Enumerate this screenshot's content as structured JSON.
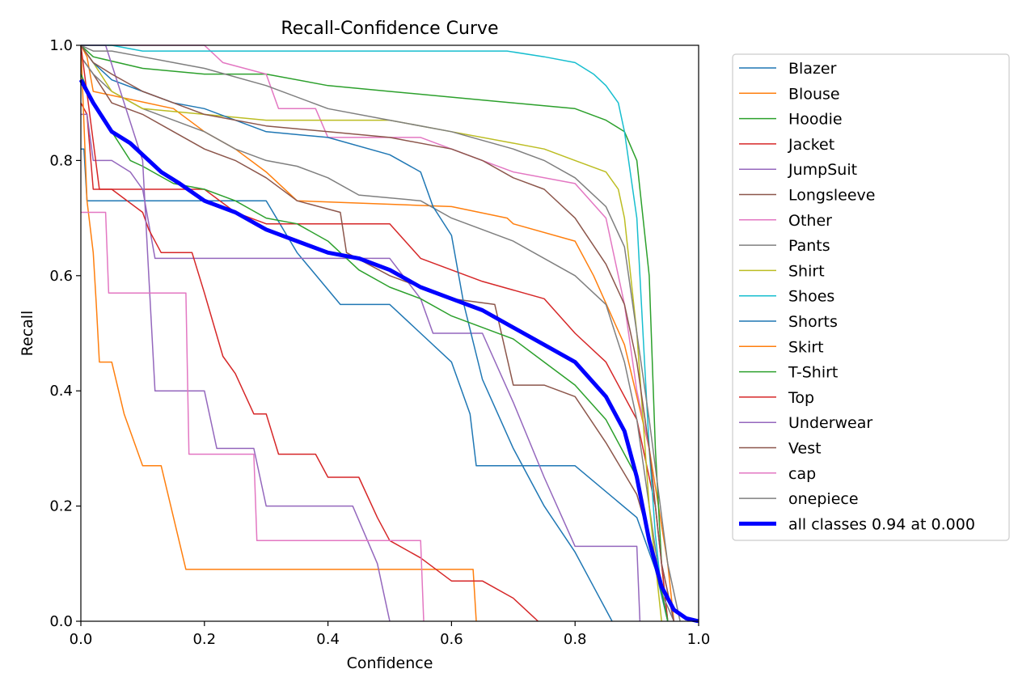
{
  "chart_data": {
    "type": "line",
    "title": "Recall-Confidence Curve",
    "xlabel": "Confidence",
    "ylabel": "Recall",
    "xlim": [
      0,
      1
    ],
    "ylim": [
      0,
      1
    ],
    "xticks": [
      "0.0",
      "0.2",
      "0.4",
      "0.6",
      "0.8",
      "1.0"
    ],
    "yticks": [
      "0.0",
      "0.2",
      "0.4",
      "0.6",
      "0.8",
      "1.0"
    ],
    "grid": false,
    "legend_position": "outside-right",
    "series": [
      {
        "name": "Blazer",
        "color": "#1f77b4",
        "x": [
          0,
          0.005,
          0.01,
          0.2,
          0.3,
          0.35,
          0.42,
          0.5,
          0.55,
          0.6,
          0.63,
          0.64,
          0.8,
          0.9,
          0.93,
          0.95
        ],
        "y": [
          0.82,
          0.82,
          0.73,
          0.73,
          0.73,
          0.64,
          0.55,
          0.55,
          0.5,
          0.45,
          0.36,
          0.27,
          0.27,
          0.18,
          0.09,
          0
        ]
      },
      {
        "name": "Blouse",
        "color": "#ff7f0e",
        "x": [
          0,
          0.01,
          0.02,
          0.15,
          0.2,
          0.25,
          0.3,
          0.35,
          0.6,
          0.69,
          0.7,
          0.8,
          0.83,
          0.88,
          0.92,
          0.95,
          0.96
        ],
        "y": [
          1,
          0.98,
          0.92,
          0.89,
          0.85,
          0.82,
          0.78,
          0.73,
          0.72,
          0.7,
          0.69,
          0.66,
          0.6,
          0.48,
          0.3,
          0.1,
          0
        ]
      },
      {
        "name": "Hoodie",
        "color": "#2ca02c",
        "x": [
          0,
          0.02,
          0.1,
          0.2,
          0.3,
          0.4,
          0.5,
          0.6,
          0.7,
          0.8,
          0.85,
          0.88,
          0.9,
          0.92,
          0.93,
          0.94,
          0.95
        ],
        "y": [
          1,
          0.98,
          0.96,
          0.95,
          0.95,
          0.93,
          0.92,
          0.91,
          0.9,
          0.89,
          0.87,
          0.85,
          0.8,
          0.6,
          0.3,
          0.1,
          0
        ]
      },
      {
        "name": "Jacket",
        "color": "#d62728",
        "x": [
          0,
          0.01,
          0.02,
          0.1,
          0.15,
          0.2,
          0.25,
          0.3,
          0.33,
          0.5,
          0.55,
          0.6,
          0.65,
          0.75,
          0.8,
          0.85,
          0.9,
          0.93,
          0.95
        ],
        "y": [
          0.9,
          0.88,
          0.75,
          0.75,
          0.75,
          0.75,
          0.71,
          0.69,
          0.69,
          0.69,
          0.63,
          0.61,
          0.59,
          0.56,
          0.5,
          0.45,
          0.35,
          0.2,
          0
        ]
      },
      {
        "name": "JumpSuit",
        "color": "#9467bd",
        "x": [
          0,
          0.01,
          0.02,
          0.05,
          0.08,
          0.1,
          0.12,
          0.13,
          0.3,
          0.5,
          0.55,
          0.57,
          0.65,
          0.7,
          0.75,
          0.8,
          0.9,
          0.905
        ],
        "y": [
          0.88,
          0.88,
          0.8,
          0.8,
          0.78,
          0.75,
          0.63,
          0.63,
          0.63,
          0.63,
          0.56,
          0.5,
          0.5,
          0.38,
          0.25,
          0.13,
          0.13,
          0
        ]
      },
      {
        "name": "Longsleeve",
        "color": "#8c564b",
        "x": [
          0,
          0.02,
          0.05,
          0.1,
          0.15,
          0.2,
          0.25,
          0.3,
          0.35,
          0.42,
          0.43,
          0.5,
          0.55,
          0.6,
          0.67,
          0.7,
          0.75,
          0.8,
          0.85,
          0.9,
          0.93,
          0.95
        ],
        "y": [
          0.98,
          0.95,
          0.9,
          0.88,
          0.85,
          0.82,
          0.8,
          0.77,
          0.73,
          0.71,
          0.64,
          0.6,
          0.58,
          0.56,
          0.55,
          0.41,
          0.41,
          0.39,
          0.31,
          0.22,
          0.11,
          0
        ]
      },
      {
        "name": "Other",
        "color": "#e377c2",
        "x": [
          0,
          0.1,
          0.2,
          0.23,
          0.3,
          0.32,
          0.38,
          0.4,
          0.55,
          0.65,
          0.7,
          0.8,
          0.85,
          0.88,
          0.9,
          0.92,
          0.94,
          0.96
        ],
        "y": [
          1,
          1,
          1,
          0.97,
          0.95,
          0.89,
          0.89,
          0.84,
          0.84,
          0.8,
          0.78,
          0.76,
          0.7,
          0.55,
          0.4,
          0.3,
          0.1,
          0
        ]
      },
      {
        "name": "Pants",
        "color": "#7f7f7f",
        "x": [
          0,
          0.02,
          0.05,
          0.1,
          0.2,
          0.25,
          0.3,
          0.35,
          0.4,
          0.45,
          0.55,
          0.6,
          0.7,
          0.8,
          0.85,
          0.88,
          0.9,
          0.92,
          0.94,
          0.96
        ],
        "y": [
          0.98,
          0.95,
          0.92,
          0.89,
          0.85,
          0.82,
          0.8,
          0.79,
          0.77,
          0.74,
          0.73,
          0.7,
          0.66,
          0.6,
          0.55,
          0.45,
          0.35,
          0.2,
          0.05,
          0
        ]
      },
      {
        "name": "Shirt",
        "color": "#bcbd22",
        "x": [
          0,
          0.02,
          0.05,
          0.1,
          0.2,
          0.3,
          0.4,
          0.5,
          0.6,
          0.7,
          0.75,
          0.8,
          0.85,
          0.87,
          0.88,
          0.9,
          0.92,
          0.94
        ],
        "y": [
          1,
          0.97,
          0.92,
          0.89,
          0.88,
          0.87,
          0.87,
          0.87,
          0.85,
          0.83,
          0.82,
          0.8,
          0.78,
          0.75,
          0.7,
          0.5,
          0.2,
          0
        ]
      },
      {
        "name": "Shoes",
        "color": "#17becf",
        "x": [
          0,
          0.05,
          0.1,
          0.3,
          0.5,
          0.6,
          0.69,
          0.75,
          0.8,
          0.83,
          0.85,
          0.87,
          0.88,
          0.9,
          0.91,
          0.92,
          0.93,
          0.94,
          0.95
        ],
        "y": [
          1,
          1,
          0.99,
          0.99,
          0.99,
          0.99,
          0.99,
          0.98,
          0.97,
          0.95,
          0.93,
          0.9,
          0.85,
          0.7,
          0.5,
          0.3,
          0.15,
          0.05,
          0
        ]
      },
      {
        "name": "Shorts",
        "color": "#1f77b4",
        "x": [
          0,
          0.02,
          0.05,
          0.1,
          0.15,
          0.2,
          0.25,
          0.3,
          0.4,
          0.5,
          0.55,
          0.57,
          0.6,
          0.62,
          0.65,
          0.7,
          0.75,
          0.8,
          0.83,
          0.86
        ],
        "y": [
          1,
          0.97,
          0.94,
          0.92,
          0.9,
          0.89,
          0.87,
          0.85,
          0.84,
          0.81,
          0.78,
          0.72,
          0.67,
          0.55,
          0.42,
          0.3,
          0.2,
          0.12,
          0.06,
          0
        ]
      },
      {
        "name": "Skirt",
        "color": "#ff7f0e",
        "x": [
          0,
          0.01,
          0.02,
          0.025,
          0.03,
          0.05,
          0.07,
          0.1,
          0.13,
          0.15,
          0.17,
          0.6,
          0.635,
          0.64
        ],
        "y": [
          1,
          0.73,
          0.64,
          0.55,
          0.45,
          0.45,
          0.36,
          0.27,
          0.27,
          0.18,
          0.09,
          0.09,
          0.09,
          0
        ]
      },
      {
        "name": "T-Shirt",
        "color": "#2ca02c",
        "x": [
          0,
          0.02,
          0.05,
          0.08,
          0.1,
          0.15,
          0.2,
          0.25,
          0.3,
          0.35,
          0.4,
          0.45,
          0.5,
          0.55,
          0.6,
          0.7,
          0.75,
          0.8,
          0.85,
          0.9,
          0.93,
          0.95
        ],
        "y": [
          0.95,
          0.9,
          0.85,
          0.8,
          0.79,
          0.76,
          0.75,
          0.73,
          0.7,
          0.69,
          0.66,
          0.61,
          0.58,
          0.56,
          0.53,
          0.49,
          0.45,
          0.41,
          0.35,
          0.25,
          0.1,
          0
        ]
      },
      {
        "name": "Top",
        "color": "#d62728",
        "x": [
          0,
          0.03,
          0.05,
          0.1,
          0.11,
          0.13,
          0.18,
          0.2,
          0.23,
          0.25,
          0.28,
          0.3,
          0.32,
          0.38,
          0.4,
          0.45,
          0.48,
          0.5,
          0.55,
          0.6,
          0.65,
          0.7,
          0.74
        ],
        "y": [
          1,
          0.75,
          0.75,
          0.71,
          0.68,
          0.64,
          0.64,
          0.57,
          0.46,
          0.43,
          0.36,
          0.36,
          0.29,
          0.29,
          0.25,
          0.25,
          0.18,
          0.14,
          0.11,
          0.07,
          0.07,
          0.04,
          0
        ]
      },
      {
        "name": "Underwear",
        "color": "#9467bd",
        "x": [
          0,
          0.04,
          0.1,
          0.11,
          0.12,
          0.15,
          0.2,
          0.22,
          0.28,
          0.3,
          0.35,
          0.44,
          0.48,
          0.5
        ],
        "y": [
          1,
          1,
          0.8,
          0.6,
          0.4,
          0.4,
          0.4,
          0.3,
          0.3,
          0.2,
          0.2,
          0.2,
          0.1,
          0
        ]
      },
      {
        "name": "Vest",
        "color": "#8c564b",
        "x": [
          0,
          0.02,
          0.05,
          0.1,
          0.2,
          0.3,
          0.4,
          0.5,
          0.6,
          0.65,
          0.7,
          0.75,
          0.8,
          0.85,
          0.88,
          0.9,
          0.92,
          0.94,
          0.96
        ],
        "y": [
          1,
          0.97,
          0.95,
          0.92,
          0.88,
          0.86,
          0.85,
          0.84,
          0.82,
          0.8,
          0.77,
          0.75,
          0.7,
          0.62,
          0.55,
          0.45,
          0.3,
          0.1,
          0
        ]
      },
      {
        "name": "cap",
        "color": "#e377c2",
        "x": [
          0,
          0.04,
          0.045,
          0.17,
          0.175,
          0.28,
          0.285,
          0.55,
          0.555
        ],
        "y": [
          0.71,
          0.71,
          0.57,
          0.57,
          0.29,
          0.29,
          0.14,
          0.14,
          0
        ]
      },
      {
        "name": "onepiece",
        "color": "#7f7f7f",
        "x": [
          0,
          0.02,
          0.05,
          0.1,
          0.15,
          0.2,
          0.3,
          0.4,
          0.5,
          0.6,
          0.7,
          0.75,
          0.8,
          0.85,
          0.88,
          0.9,
          0.92,
          0.95,
          0.97
        ],
        "y": [
          1,
          0.99,
          0.99,
          0.98,
          0.97,
          0.96,
          0.93,
          0.89,
          0.87,
          0.85,
          0.82,
          0.8,
          0.77,
          0.72,
          0.65,
          0.5,
          0.35,
          0.1,
          0
        ]
      },
      {
        "name": "all classes 0.94 at 0.000",
        "color": "#0000ff",
        "bold": true,
        "x": [
          0,
          0.02,
          0.05,
          0.08,
          0.1,
          0.13,
          0.16,
          0.2,
          0.25,
          0.3,
          0.35,
          0.4,
          0.45,
          0.5,
          0.55,
          0.6,
          0.65,
          0.7,
          0.75,
          0.8,
          0.85,
          0.88,
          0.9,
          0.92,
          0.94,
          0.96,
          0.98,
          1.0
        ],
        "y": [
          0.94,
          0.9,
          0.85,
          0.83,
          0.81,
          0.78,
          0.76,
          0.73,
          0.71,
          0.68,
          0.66,
          0.64,
          0.63,
          0.61,
          0.58,
          0.56,
          0.54,
          0.51,
          0.48,
          0.45,
          0.39,
          0.33,
          0.25,
          0.14,
          0.06,
          0.02,
          0.005,
          0
        ]
      }
    ]
  }
}
